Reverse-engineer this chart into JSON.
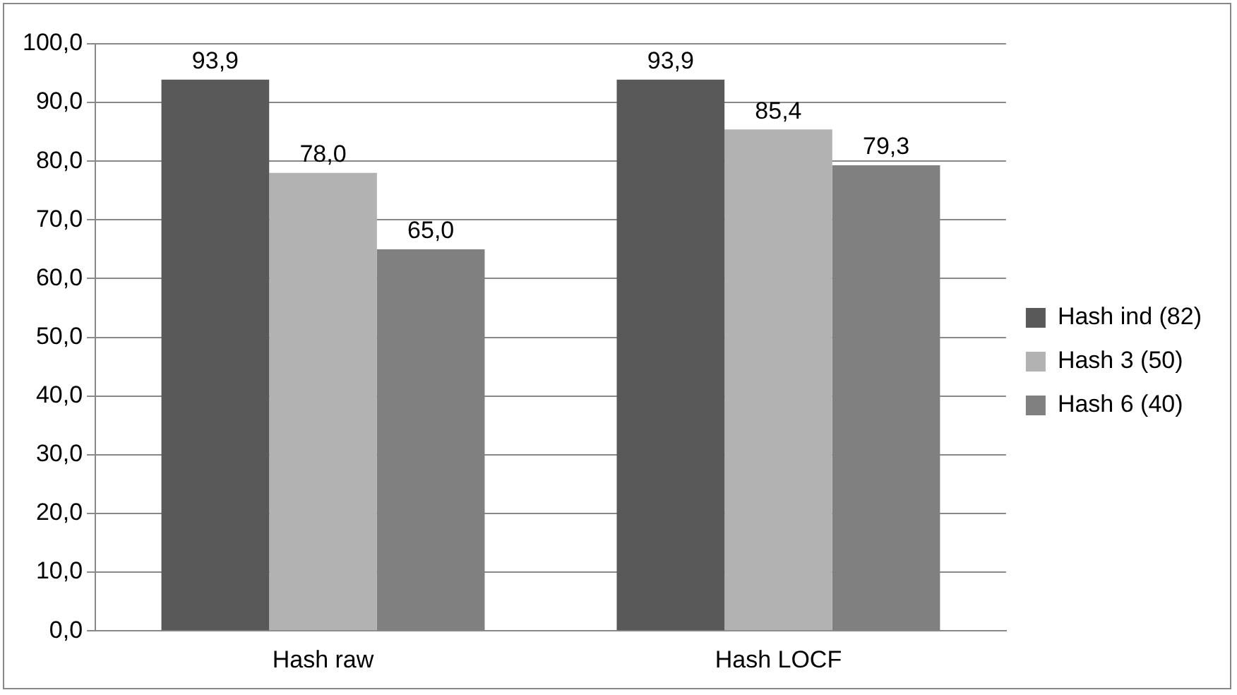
{
  "chart_data": {
    "type": "bar",
    "categories": [
      "Hash raw",
      "Hash LOCF"
    ],
    "series": [
      {
        "name": "Hash ind (82)",
        "color": "#595959",
        "values": [
          93.9,
          93.9
        ],
        "value_labels": [
          "93,9",
          "93,9"
        ]
      },
      {
        "name": "Hash 3 (50)",
        "color": "#b2b2b2",
        "values": [
          78.0,
          85.4
        ],
        "value_labels": [
          "78,0",
          "85,4"
        ]
      },
      {
        "name": "Hash 6 (40)",
        "color": "#808080",
        "values": [
          65.0,
          79.3
        ],
        "value_labels": [
          "65,0",
          "79,3"
        ]
      }
    ],
    "ylim": [
      0,
      100
    ],
    "yticks": [
      {
        "value": 0,
        "label": "0,0"
      },
      {
        "value": 10,
        "label": "10,0"
      },
      {
        "value": 20,
        "label": "20,0"
      },
      {
        "value": 30,
        "label": "30,0"
      },
      {
        "value": 40,
        "label": "40,0"
      },
      {
        "value": 50,
        "label": "50,0"
      },
      {
        "value": 60,
        "label": "60,0"
      },
      {
        "value": 70,
        "label": "70,0"
      },
      {
        "value": 80,
        "label": "80,0"
      },
      {
        "value": 90,
        "label": "90,0"
      },
      {
        "value": 100,
        "label": "100,0"
      }
    ],
    "grid": "y",
    "legend": "right"
  }
}
